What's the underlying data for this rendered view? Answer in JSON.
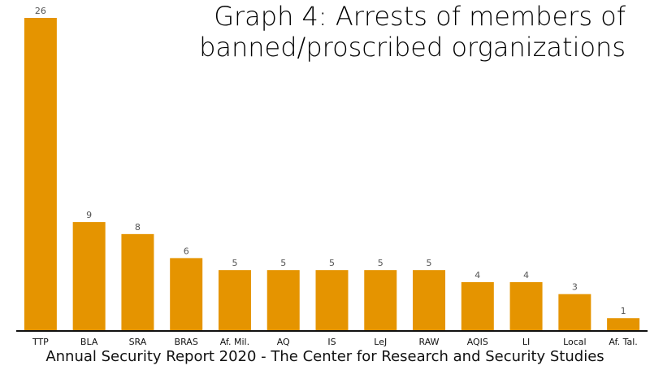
{
  "title_line_1": "Graph 4: Arrests of members of",
  "title_line_2": "banned/proscribed organizations",
  "footer": "Annual Security Report 2020 - The Center for Research and Security Studies",
  "colors": {
    "bar": "#E59400",
    "axis": "#111111"
  },
  "chart_data": {
    "type": "bar",
    "title": "Graph 4: Arrests of members of banned/proscribed organizations",
    "xlabel": "",
    "ylabel": "",
    "ylim": [
      0,
      26
    ],
    "grid": false,
    "categories": [
      "TTP",
      "BLA",
      "SRA",
      "BRAS",
      "Af. Mil.",
      "AQ",
      "IS",
      "LeJ",
      "RAW",
      "AQIS",
      "LI",
      "Local",
      "Af. Tal."
    ],
    "values": [
      26,
      9,
      8,
      6,
      5,
      5,
      5,
      5,
      5,
      4,
      4,
      3,
      1
    ]
  }
}
